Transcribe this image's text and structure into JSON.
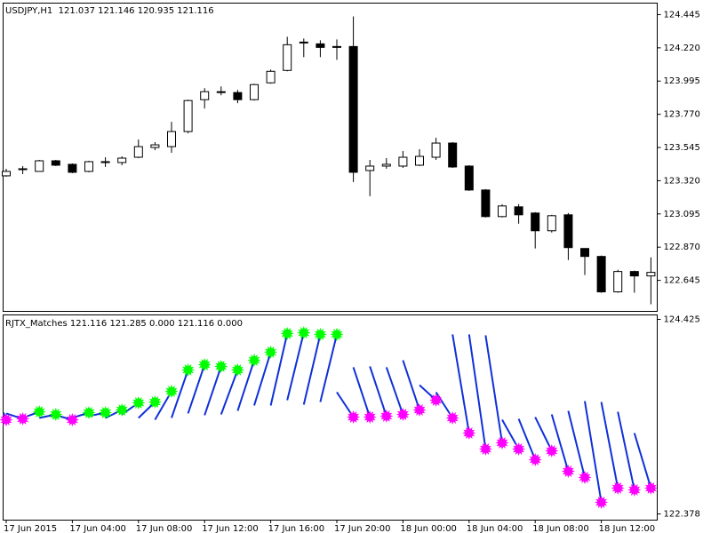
{
  "chart_data": [
    {
      "type": "candlestick",
      "title": "USDJPY,H1  121.037 121.146 120.935 121.116",
      "categories": [
        "17 Jun 2015",
        null,
        null,
        null,
        "17 Jun 04:00",
        null,
        null,
        null,
        "17 Jun 08:00",
        null,
        null,
        null,
        "17 Jun 12:00",
        null,
        null,
        null,
        "17 Jun 16:00",
        null,
        null,
        null,
        "17 Jun 20:00",
        null,
        null,
        null,
        "18 Jun 00:00",
        null,
        null,
        null,
        "18 Jun 04:00",
        null,
        null,
        null,
        "18 Jun 08:00",
        null,
        null,
        null,
        "18 Jun 12:00",
        null,
        null,
        null
      ],
      "open": [
        123.353,
        123.395,
        123.383,
        123.455,
        123.431,
        123.383,
        123.443,
        123.443,
        123.479,
        123.545,
        123.551,
        123.653,
        123.869,
        123.917,
        123.917,
        123.869,
        123.983,
        124.067,
        124.253,
        124.247,
        124.223,
        124.229,
        123.389,
        123.419,
        123.419,
        123.425,
        123.479,
        123.575,
        123.419,
        123.257,
        123.077,
        123.143,
        123.101,
        122.981,
        123.089,
        122.861,
        122.807,
        122.567,
        122.705,
        122.675
      ],
      "high": [
        123.401,
        123.419,
        123.461,
        123.461,
        123.437,
        123.455,
        123.479,
        123.485,
        123.599,
        123.581,
        123.719,
        123.869,
        123.947,
        123.959,
        123.935,
        123.977,
        124.073,
        124.295,
        124.283,
        124.271,
        124.277,
        124.433,
        123.461,
        123.473,
        123.521,
        123.533,
        123.611,
        123.581,
        123.425,
        123.263,
        123.161,
        123.161,
        123.107,
        123.089,
        123.101,
        122.861,
        122.813,
        122.717,
        122.711,
        122.801
      ],
      "low": [
        123.347,
        123.365,
        123.383,
        123.419,
        123.371,
        123.377,
        123.413,
        123.425,
        123.473,
        123.527,
        123.509,
        123.641,
        123.809,
        123.899,
        123.845,
        123.863,
        123.977,
        124.061,
        124.157,
        124.157,
        124.139,
        123.311,
        123.215,
        123.401,
        123.407,
        123.419,
        123.461,
        123.407,
        123.251,
        123.071,
        123.071,
        123.029,
        122.861,
        122.969,
        122.783,
        122.681,
        122.561,
        122.561,
        122.561,
        122.483
      ],
      "close": [
        123.383,
        123.401,
        123.455,
        123.425,
        123.377,
        123.449,
        123.449,
        123.473,
        123.551,
        123.563,
        123.653,
        123.863,
        123.923,
        123.923,
        123.869,
        123.971,
        124.061,
        124.241,
        124.259,
        124.223,
        124.229,
        123.377,
        123.419,
        123.431,
        123.479,
        123.485,
        123.575,
        123.413,
        123.257,
        123.077,
        123.149,
        123.089,
        122.981,
        123.083,
        122.867,
        122.807,
        122.567,
        122.705,
        122.675,
        122.699
      ],
      "up_color": "#ffffff",
      "down_color": "#000000",
      "ylim": [
        122.435,
        124.523
      ],
      "yticks": [
        124.445,
        {
          "value": 124.22,
          "label": "124.220"
        },
        123.995,
        {
          "value": 123.77,
          "label": "123.770"
        },
        123.545,
        {
          "value": 123.32,
          "label": "123.320"
        },
        123.095,
        {
          "value": 122.87,
          "label": "122.870"
        },
        122.645
      ]
    },
    {
      "type": "indicator",
      "title": "RJTX_Matches 121.116 121.285 0.000 121.116 0.000",
      "start": [
        123.444,
        123.435,
        123.388,
        123.388,
        123.416,
        123.388,
        123.407,
        123.388,
        123.425,
        123.388,
        123.369,
        123.388,
        123.435,
        123.416,
        123.425,
        123.463,
        123.519,
        123.519,
        123.575,
        123.528,
        123.556,
        123.659,
        123.921,
        123.93,
        123.921,
        123.995,
        123.734,
        123.659,
        124.267,
        124.267,
        124.257,
        123.369,
        123.379,
        123.397,
        123.425,
        123.463,
        123.565,
        123.556,
        123.453,
        123.229
      ],
      "end": [
        123.369,
        123.379,
        123.453,
        123.425,
        123.369,
        123.444,
        123.444,
        123.472,
        123.547,
        123.556,
        123.668,
        123.893,
        123.949,
        123.93,
        123.893,
        123.995,
        124.08,
        124.276,
        124.285,
        124.267,
        124.267,
        123.397,
        123.397,
        123.407,
        123.425,
        123.472,
        123.575,
        123.388,
        123.229,
        123.061,
        123.126,
        123.061,
        122.949,
        123.042,
        122.827,
        122.762,
        122.5,
        122.65,
        122.631,
        122.65
      ],
      "line_color": "#1030d8",
      "up_color": "#00ff00",
      "down_color": "#ff00ff",
      "ylim": [
        122.313,
        124.472
      ],
      "yticks": [
        124.425,
        122.378
      ]
    }
  ]
}
